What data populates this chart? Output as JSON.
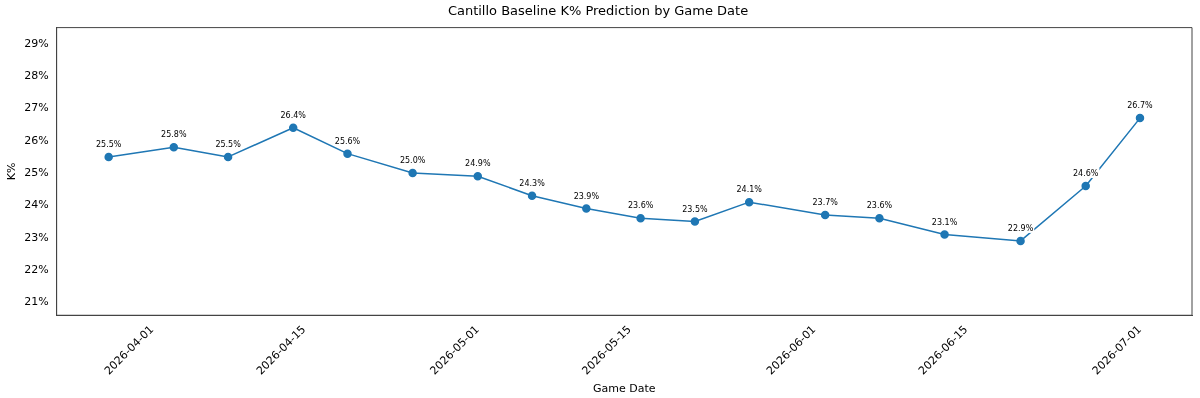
{
  "chart_data": {
    "type": "line",
    "title": "Cantillo Baseline K% Prediction by Game Date",
    "xlabel": "Game Date",
    "ylabel": "K%",
    "x": [
      "2026-03-28",
      "2026-04-03",
      "2026-04-08",
      "2026-04-14",
      "2026-04-19",
      "2026-04-25",
      "2026-05-01",
      "2026-05-06",
      "2026-05-11",
      "2026-05-16",
      "2026-05-21",
      "2026-05-26",
      "2026-06-02",
      "2026-06-07",
      "2026-06-13",
      "2026-06-20",
      "2026-06-26",
      "2026-07-01"
    ],
    "series": [
      {
        "color": "#1f77b4",
        "values": [
          25.5,
          25.8,
          25.5,
          26.4,
          25.6,
          25.0,
          24.9,
          24.3,
          23.9,
          23.6,
          23.5,
          24.1,
          23.7,
          23.6,
          23.1,
          22.9,
          24.6,
          26.7
        ],
        "value_labels": [
          "25.5%",
          "25.8%",
          "25.5%",
          "26.4%",
          "25.6%",
          "25.0%",
          "24.9%",
          "24.3%",
          "23.9%",
          "23.6%",
          "23.5%",
          "24.1%",
          "23.7%",
          "23.6%",
          "23.1%",
          "22.9%",
          "24.6%",
          "26.7%"
        ]
      }
    ],
    "xlim": [
      "2026-03-23T05:00",
      "2026-07-05T19:00"
    ],
    "xticks": [
      "2026-04-01",
      "2026-04-15",
      "2026-05-01",
      "2026-05-15",
      "2026-06-01",
      "2026-06-15",
      "2026-07-01"
    ],
    "ylim": [
      20.6,
      29.5
    ],
    "yticks": [
      {
        "value": 21,
        "label": "21%"
      },
      {
        "value": 22,
        "label": "22%"
      },
      {
        "value": 23,
        "label": "23%"
      },
      {
        "value": 24,
        "label": "24%"
      },
      {
        "value": 25,
        "label": "25%"
      },
      {
        "value": 26,
        "label": "26%"
      },
      {
        "value": 27,
        "label": "27%"
      },
      {
        "value": 28,
        "label": "28%"
      },
      {
        "value": 29,
        "label": "29%"
      }
    ],
    "grid": false,
    "legend": false,
    "marker": "circle",
    "line_style": "solid"
  }
}
